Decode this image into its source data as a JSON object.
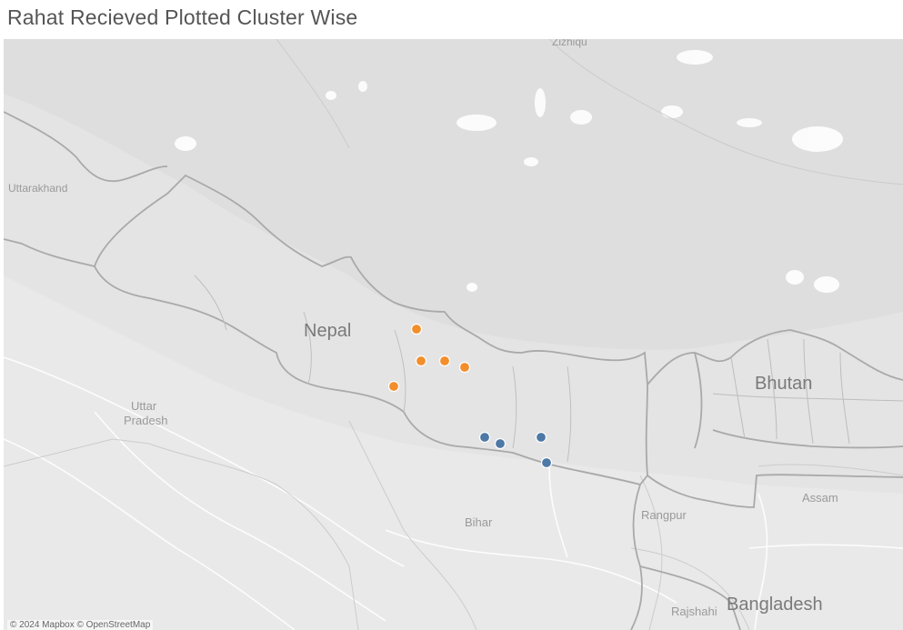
{
  "title": "Rahat Recieved Plotted Cluster Wise",
  "map": {
    "labels": {
      "zizhiqu": "Zizhiqu",
      "uttarakhand": "Uttarakhand",
      "nepal": "Nepal",
      "bhutan": "Bhutan",
      "uttar_pradesh_1": "Uttar",
      "uttar_pradesh_2": "Pradesh",
      "bihar": "Bihar",
      "assam": "Assam",
      "rangpur": "Rangpur",
      "rajshahi": "Rajshahi",
      "bangladesh": "Bangladesh"
    },
    "attribution": "© 2024 Mapbox © OpenStreetMap"
  },
  "colors": {
    "cluster_orange": "#f28e2b",
    "cluster_blue": "#4e79a7"
  }
}
